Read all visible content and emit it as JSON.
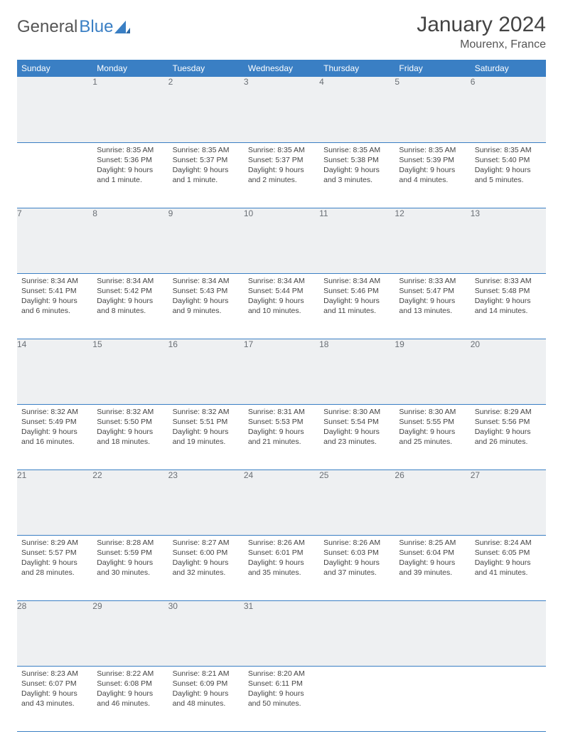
{
  "logo": {
    "text1": "General",
    "text2": "Blue"
  },
  "title": "January 2024",
  "location": "Mourenx, France",
  "colors": {
    "header_bg": "#3a7fc4",
    "header_fg": "#ffffff",
    "daynum_bg": "#eef0f2",
    "daynum_fg": "#6a6f75",
    "rule": "#3a7fc4",
    "text": "#444444",
    "title_color": "#444444"
  },
  "weekdays": [
    "Sunday",
    "Monday",
    "Tuesday",
    "Wednesday",
    "Thursday",
    "Friday",
    "Saturday"
  ],
  "weeks": [
    {
      "nums": [
        "",
        "1",
        "2",
        "3",
        "4",
        "5",
        "6"
      ],
      "cells": [
        {},
        {
          "sunrise": "Sunrise: 8:35 AM",
          "sunset": "Sunset: 5:36 PM",
          "day1": "Daylight: 9 hours",
          "day2": "and 1 minute."
        },
        {
          "sunrise": "Sunrise: 8:35 AM",
          "sunset": "Sunset: 5:37 PM",
          "day1": "Daylight: 9 hours",
          "day2": "and 1 minute."
        },
        {
          "sunrise": "Sunrise: 8:35 AM",
          "sunset": "Sunset: 5:37 PM",
          "day1": "Daylight: 9 hours",
          "day2": "and 2 minutes."
        },
        {
          "sunrise": "Sunrise: 8:35 AM",
          "sunset": "Sunset: 5:38 PM",
          "day1": "Daylight: 9 hours",
          "day2": "and 3 minutes."
        },
        {
          "sunrise": "Sunrise: 8:35 AM",
          "sunset": "Sunset: 5:39 PM",
          "day1": "Daylight: 9 hours",
          "day2": "and 4 minutes."
        },
        {
          "sunrise": "Sunrise: 8:35 AM",
          "sunset": "Sunset: 5:40 PM",
          "day1": "Daylight: 9 hours",
          "day2": "and 5 minutes."
        }
      ]
    },
    {
      "nums": [
        "7",
        "8",
        "9",
        "10",
        "11",
        "12",
        "13"
      ],
      "cells": [
        {
          "sunrise": "Sunrise: 8:34 AM",
          "sunset": "Sunset: 5:41 PM",
          "day1": "Daylight: 9 hours",
          "day2": "and 6 minutes."
        },
        {
          "sunrise": "Sunrise: 8:34 AM",
          "sunset": "Sunset: 5:42 PM",
          "day1": "Daylight: 9 hours",
          "day2": "and 8 minutes."
        },
        {
          "sunrise": "Sunrise: 8:34 AM",
          "sunset": "Sunset: 5:43 PM",
          "day1": "Daylight: 9 hours",
          "day2": "and 9 minutes."
        },
        {
          "sunrise": "Sunrise: 8:34 AM",
          "sunset": "Sunset: 5:44 PM",
          "day1": "Daylight: 9 hours",
          "day2": "and 10 minutes."
        },
        {
          "sunrise": "Sunrise: 8:34 AM",
          "sunset": "Sunset: 5:46 PM",
          "day1": "Daylight: 9 hours",
          "day2": "and 11 minutes."
        },
        {
          "sunrise": "Sunrise: 8:33 AM",
          "sunset": "Sunset: 5:47 PM",
          "day1": "Daylight: 9 hours",
          "day2": "and 13 minutes."
        },
        {
          "sunrise": "Sunrise: 8:33 AM",
          "sunset": "Sunset: 5:48 PM",
          "day1": "Daylight: 9 hours",
          "day2": "and 14 minutes."
        }
      ]
    },
    {
      "nums": [
        "14",
        "15",
        "16",
        "17",
        "18",
        "19",
        "20"
      ],
      "cells": [
        {
          "sunrise": "Sunrise: 8:32 AM",
          "sunset": "Sunset: 5:49 PM",
          "day1": "Daylight: 9 hours",
          "day2": "and 16 minutes."
        },
        {
          "sunrise": "Sunrise: 8:32 AM",
          "sunset": "Sunset: 5:50 PM",
          "day1": "Daylight: 9 hours",
          "day2": "and 18 minutes."
        },
        {
          "sunrise": "Sunrise: 8:32 AM",
          "sunset": "Sunset: 5:51 PM",
          "day1": "Daylight: 9 hours",
          "day2": "and 19 minutes."
        },
        {
          "sunrise": "Sunrise: 8:31 AM",
          "sunset": "Sunset: 5:53 PM",
          "day1": "Daylight: 9 hours",
          "day2": "and 21 minutes."
        },
        {
          "sunrise": "Sunrise: 8:30 AM",
          "sunset": "Sunset: 5:54 PM",
          "day1": "Daylight: 9 hours",
          "day2": "and 23 minutes."
        },
        {
          "sunrise": "Sunrise: 8:30 AM",
          "sunset": "Sunset: 5:55 PM",
          "day1": "Daylight: 9 hours",
          "day2": "and 25 minutes."
        },
        {
          "sunrise": "Sunrise: 8:29 AM",
          "sunset": "Sunset: 5:56 PM",
          "day1": "Daylight: 9 hours",
          "day2": "and 26 minutes."
        }
      ]
    },
    {
      "nums": [
        "21",
        "22",
        "23",
        "24",
        "25",
        "26",
        "27"
      ],
      "cells": [
        {
          "sunrise": "Sunrise: 8:29 AM",
          "sunset": "Sunset: 5:57 PM",
          "day1": "Daylight: 9 hours",
          "day2": "and 28 minutes."
        },
        {
          "sunrise": "Sunrise: 8:28 AM",
          "sunset": "Sunset: 5:59 PM",
          "day1": "Daylight: 9 hours",
          "day2": "and 30 minutes."
        },
        {
          "sunrise": "Sunrise: 8:27 AM",
          "sunset": "Sunset: 6:00 PM",
          "day1": "Daylight: 9 hours",
          "day2": "and 32 minutes."
        },
        {
          "sunrise": "Sunrise: 8:26 AM",
          "sunset": "Sunset: 6:01 PM",
          "day1": "Daylight: 9 hours",
          "day2": "and 35 minutes."
        },
        {
          "sunrise": "Sunrise: 8:26 AM",
          "sunset": "Sunset: 6:03 PM",
          "day1": "Daylight: 9 hours",
          "day2": "and 37 minutes."
        },
        {
          "sunrise": "Sunrise: 8:25 AM",
          "sunset": "Sunset: 6:04 PM",
          "day1": "Daylight: 9 hours",
          "day2": "and 39 minutes."
        },
        {
          "sunrise": "Sunrise: 8:24 AM",
          "sunset": "Sunset: 6:05 PM",
          "day1": "Daylight: 9 hours",
          "day2": "and 41 minutes."
        }
      ]
    },
    {
      "nums": [
        "28",
        "29",
        "30",
        "31",
        "",
        "",
        ""
      ],
      "cells": [
        {
          "sunrise": "Sunrise: 8:23 AM",
          "sunset": "Sunset: 6:07 PM",
          "day1": "Daylight: 9 hours",
          "day2": "and 43 minutes."
        },
        {
          "sunrise": "Sunrise: 8:22 AM",
          "sunset": "Sunset: 6:08 PM",
          "day1": "Daylight: 9 hours",
          "day2": "and 46 minutes."
        },
        {
          "sunrise": "Sunrise: 8:21 AM",
          "sunset": "Sunset: 6:09 PM",
          "day1": "Daylight: 9 hours",
          "day2": "and 48 minutes."
        },
        {
          "sunrise": "Sunrise: 8:20 AM",
          "sunset": "Sunset: 6:11 PM",
          "day1": "Daylight: 9 hours",
          "day2": "and 50 minutes."
        },
        {},
        {},
        {}
      ]
    }
  ]
}
